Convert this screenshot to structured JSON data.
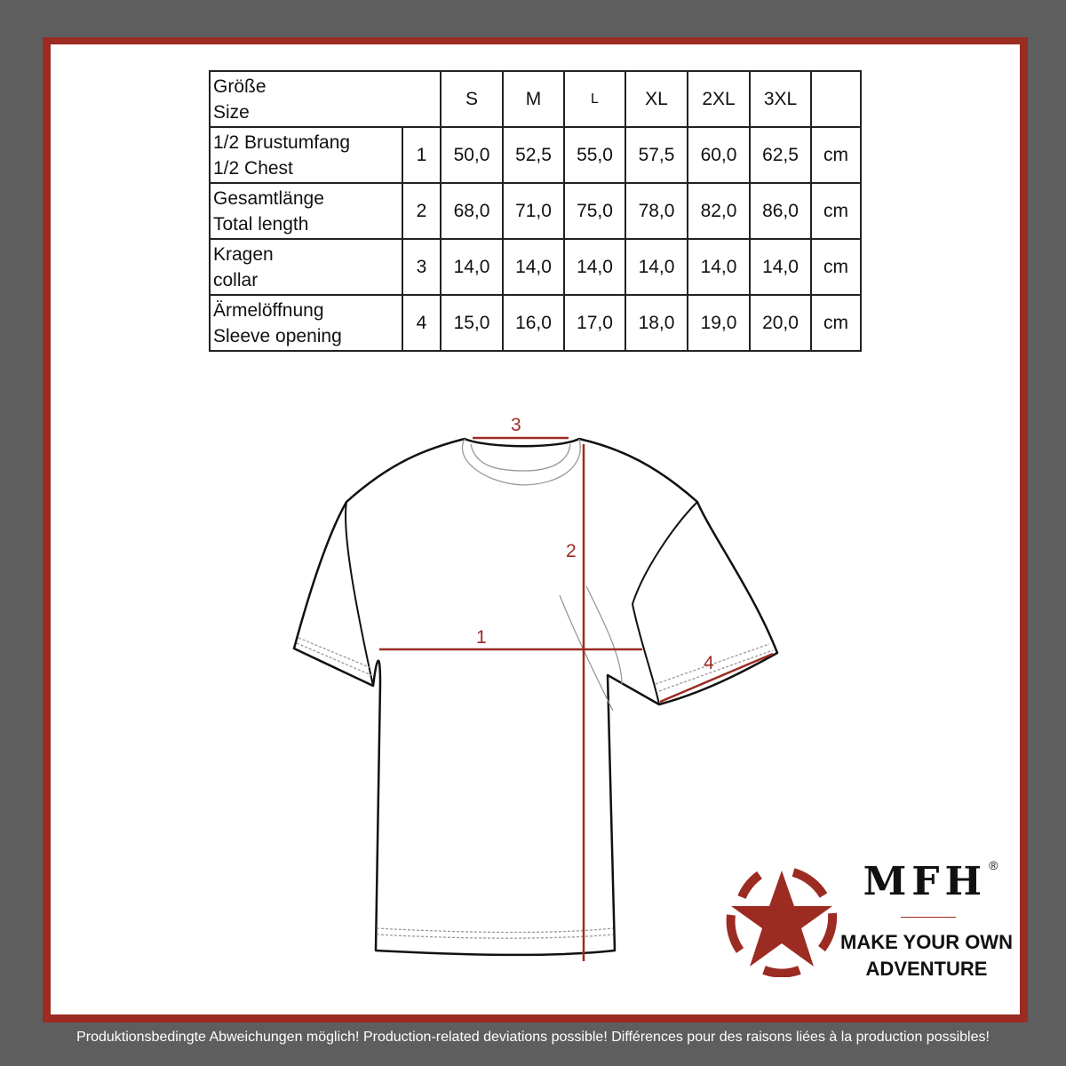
{
  "table": {
    "header": {
      "label_de": "Größe",
      "label_en": "Size",
      "sizes": [
        "S",
        "M",
        "L",
        "XL",
        "2XL",
        "3XL"
      ]
    },
    "rows": [
      {
        "label_de": "1/2 Brustumfang",
        "label_en": "1/2 Chest",
        "num": "1",
        "values": [
          "50,0",
          "52,5",
          "55,0",
          "57,5",
          "60,0",
          "62,5"
        ],
        "unit": "cm"
      },
      {
        "label_de": "Gesamtlänge",
        "label_en": "Total length",
        "num": "2",
        "values": [
          "68,0",
          "71,0",
          "75,0",
          "78,0",
          "82,0",
          "86,0"
        ],
        "unit": "cm"
      },
      {
        "label_de": "Kragen",
        "label_en": "collar",
        "num": "3",
        "values": [
          "14,0",
          "14,0",
          "14,0",
          "14,0",
          "14,0",
          "14,0"
        ],
        "unit": "cm"
      },
      {
        "label_de": "Ärmelöffnung",
        "label_en": "Sleeve opening",
        "num": "4",
        "values": [
          "15,0",
          "16,0",
          "17,0",
          "18,0",
          "19,0",
          "20,0"
        ],
        "unit": "cm"
      }
    ]
  },
  "diagram": {
    "markers": [
      "1",
      "2",
      "3",
      "4"
    ],
    "accent": "#9c2b22"
  },
  "logo": {
    "brand": "MFH",
    "registered": "®",
    "slogan_line1": "MAKE YOUR OWN",
    "slogan_line2": "ADVENTURE"
  },
  "footer": "Produktionsbedingte Abweichungen möglich! Production-related deviations possible! Différences pour des raisons liées à la production possibles!"
}
